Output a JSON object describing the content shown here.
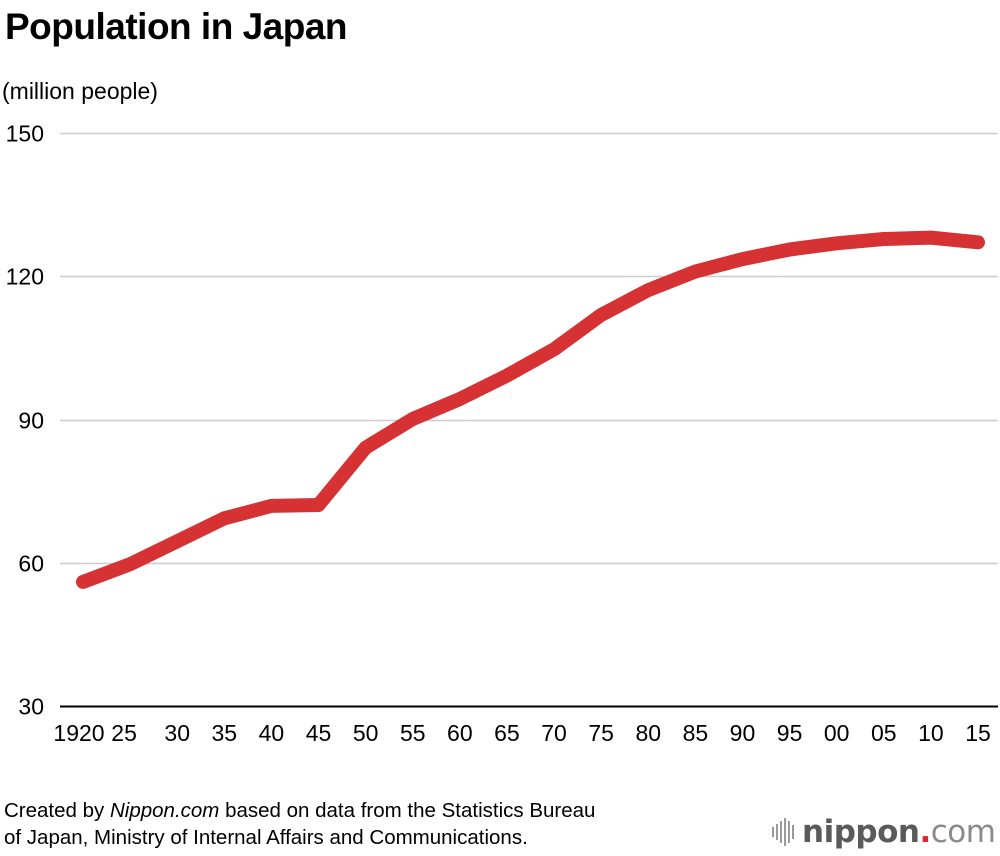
{
  "header": {
    "title": "Population in Japan",
    "unit_label": "(million people)"
  },
  "footer": {
    "source_prefix": "Created by ",
    "source_brand": "Nippon.com",
    "source_line1_rest": " based on data from the Statistics Bureau",
    "source_line2": "of Japan, Ministry of Internal Affairs and Communications.",
    "logo": {
      "name_bold": "nippon",
      "dot": ".",
      "suffix": "com"
    }
  },
  "colors": {
    "line": "#d63133",
    "gridline": "#cccccc",
    "baseline": "#000000",
    "logo_dot": "#e0262b"
  },
  "chart_data": {
    "type": "line",
    "title": "Population in Japan",
    "xlabel": "",
    "ylabel": "(million people)",
    "x": [
      1920,
      1925,
      1930,
      1935,
      1940,
      1945,
      1950,
      1955,
      1960,
      1965,
      1970,
      1975,
      1980,
      1985,
      1990,
      1995,
      2000,
      2005,
      2010,
      2015
    ],
    "x_tick_labels": [
      "1920",
      "25",
      "30",
      "35",
      "40",
      "45",
      "50",
      "55",
      "60",
      "65",
      "70",
      "75",
      "80",
      "85",
      "90",
      "95",
      "00",
      "05",
      "10",
      "15"
    ],
    "series": [
      {
        "name": "Population",
        "values": [
          56.0,
          59.7,
          64.5,
          69.3,
          71.9,
          72.1,
          84.1,
          90.1,
          94.3,
          99.2,
          104.7,
          111.9,
          117.1,
          121.0,
          123.6,
          125.6,
          126.9,
          127.8,
          128.1,
          127.1
        ]
      }
    ],
    "ylim": [
      30,
      150
    ],
    "y_ticks": [
      30,
      60,
      90,
      120,
      150
    ],
    "grid": true,
    "legend": "none"
  }
}
